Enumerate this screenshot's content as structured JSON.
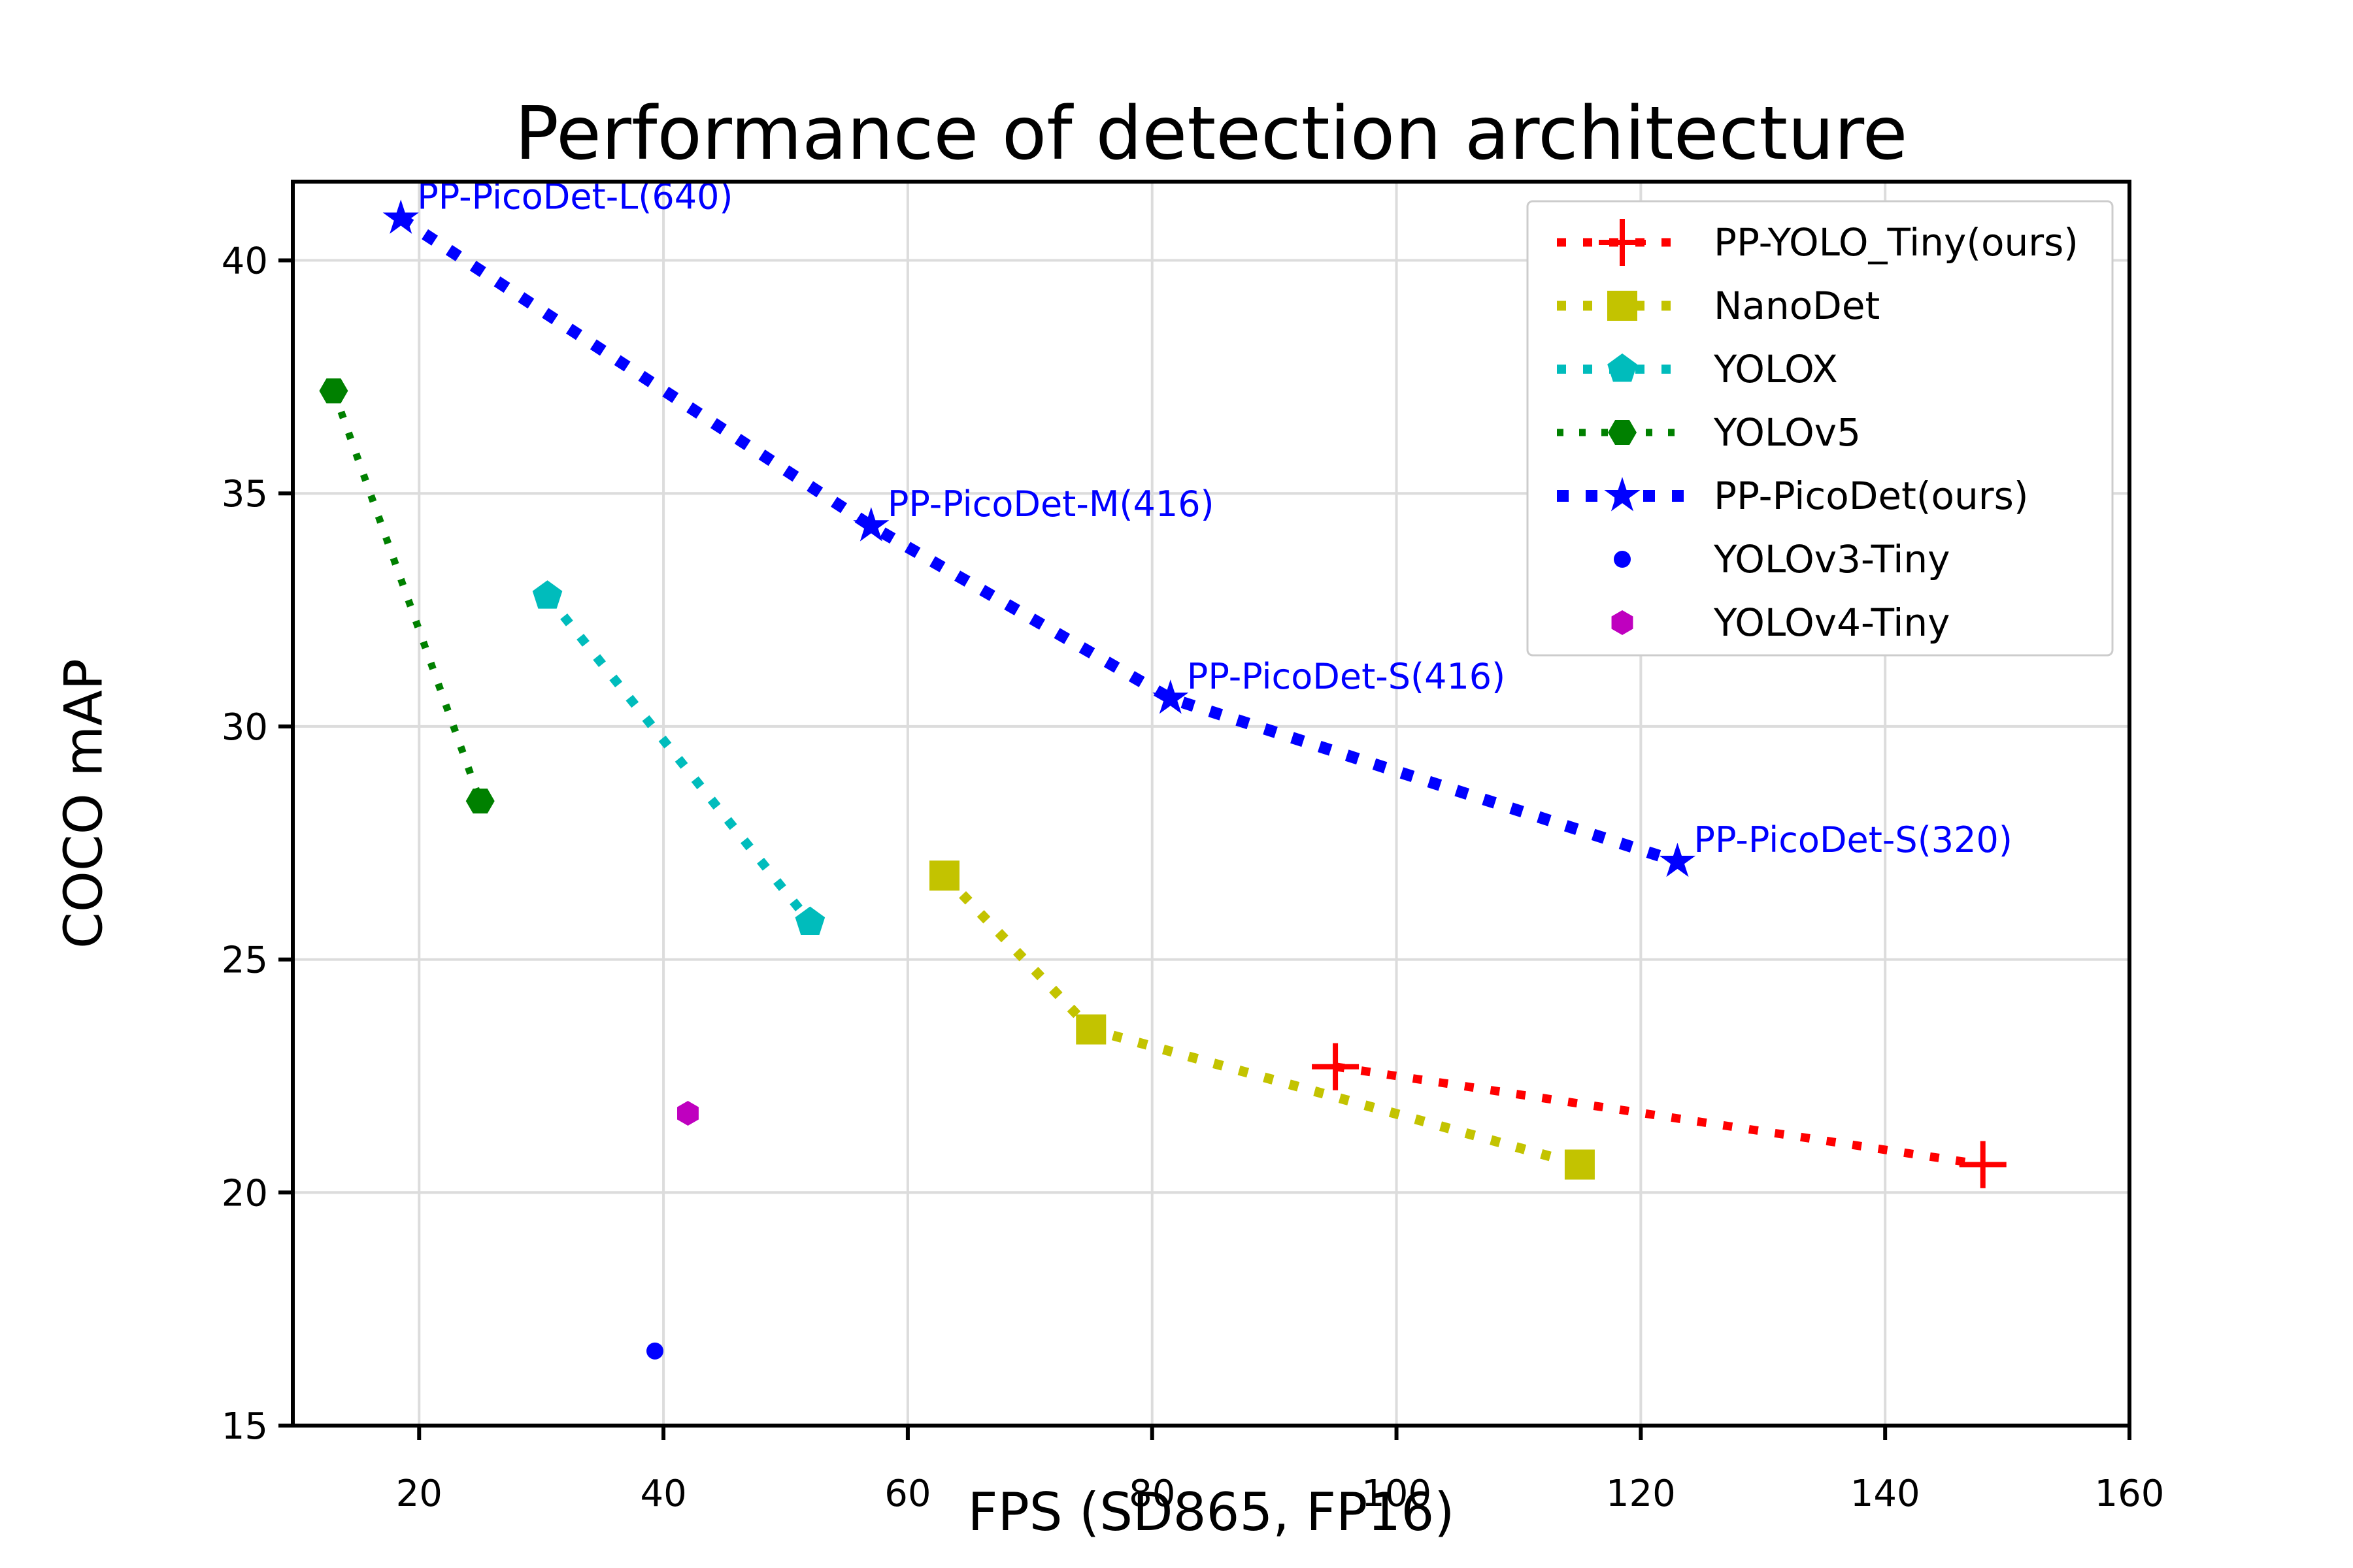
{
  "chart_data": {
    "type": "line",
    "title": "Performance of detection architecture",
    "xlabel": "FPS (SD865, FP16)",
    "ylabel": "COCO mAP",
    "xlim": [
      9.66,
      160
    ],
    "ylim": [
      15,
      41.69
    ],
    "xticks": [
      20,
      40,
      60,
      80,
      100,
      120,
      140,
      160
    ],
    "yticks": [
      15,
      20,
      25,
      30,
      35,
      40
    ],
    "grid": true,
    "legend_position": "upper-right",
    "annotation_color": "#0000ff",
    "series": [
      {
        "name": "PP-YOLO_Tiny(ours)",
        "color": "#ff0000",
        "marker": "plus",
        "line": "dotted",
        "line_width": 13,
        "marker_size": 36,
        "x": [
          95,
          148
        ],
        "y": [
          22.7,
          20.6
        ]
      },
      {
        "name": "NanoDet",
        "color": "#c3c300",
        "marker": "square",
        "line": "dotted",
        "line_width": 15,
        "marker_size": 23,
        "x": [
          63,
          75,
          115
        ],
        "y": [
          26.8,
          23.5,
          20.6
        ]
      },
      {
        "name": "YOLOX",
        "color": "#00bcbc",
        "marker": "pentagon",
        "line": "dotted",
        "line_width": 14,
        "marker_size": 24,
        "x": [
          30.5,
          52
        ],
        "y": [
          32.8,
          25.8
        ]
      },
      {
        "name": "YOLOv5",
        "color": "#008000",
        "marker": "hexagon-flat",
        "line": "dotted",
        "line_width": 11,
        "marker_size": 22,
        "x": [
          13,
          25
        ],
        "y": [
          37.2,
          28.4
        ]
      },
      {
        "name": "PP-PicoDet(ours)",
        "color": "#0000ff",
        "marker": "star",
        "line": "dotted",
        "line_width": 18,
        "marker_size": 29,
        "x": [
          18.5,
          57,
          81.5,
          123
        ],
        "y": [
          40.9,
          34.3,
          30.6,
          27.1
        ]
      },
      {
        "name": "YOLOv3-Tiny",
        "color": "#0000ff",
        "marker": "circle",
        "line": "none",
        "line_width": 0,
        "marker_size": 13,
        "x": [
          39.3
        ],
        "y": [
          16.6
        ]
      },
      {
        "name": "YOLOv4-Tiny",
        "color": "#bf00bf",
        "marker": "hexagon-point",
        "line": "none",
        "line_width": 0,
        "marker_size": 19,
        "x": [
          42
        ],
        "y": [
          21.7
        ]
      }
    ],
    "annotations": [
      {
        "text": "PP-PicoDet-L(640)",
        "x": 18.5,
        "y": 40.9
      },
      {
        "text": "PP-PicoDet-M(416)",
        "x": 57,
        "y": 34.3
      },
      {
        "text": "PP-PicoDet-S(416)",
        "x": 81.5,
        "y": 30.6
      },
      {
        "text": "PP-PicoDet-S(320)",
        "x": 123,
        "y": 27.1
      }
    ]
  }
}
